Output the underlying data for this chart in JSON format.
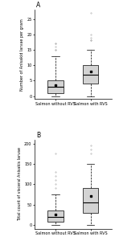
{
  "panel_A": {
    "title": "A",
    "ylabel": "Number of Anisakid larvae per gram",
    "ylim": [
      -1,
      28
    ],
    "yticks": [
      0,
      5,
      10,
      15,
      20,
      25
    ],
    "groups": [
      "Salmon without RVS",
      "Salmon with RVS"
    ],
    "box_stats": [
      {
        "med": 3,
        "q1": 1,
        "q3": 5,
        "whislo": 0,
        "whishi": 13,
        "mean": 3.5,
        "fliers": [
          15,
          15,
          16,
          17,
          17
        ]
      },
      {
        "med": 7,
        "q1": 4,
        "q3": 10,
        "whislo": 0,
        "whishi": 15,
        "mean": 8,
        "fliers": [
          18,
          18,
          19,
          20,
          27
        ]
      }
    ]
  },
  "panel_B": {
    "title": "B",
    "ylabel": "Total count of visceral Anisakis larvae",
    "ylim": [
      -10,
      210
    ],
    "yticks": [
      0,
      50,
      100,
      150,
      200
    ],
    "groups": [
      "Salmon without RVS",
      "Salmon with RVS"
    ],
    "box_stats": [
      {
        "med": 20,
        "q1": 8,
        "q3": 35,
        "whislo": 0,
        "whishi": 75,
        "mean": 25,
        "fliers": [
          90,
          100,
          110,
          120,
          130,
          175
        ]
      },
      {
        "med": 55,
        "q1": 30,
        "q3": 90,
        "whislo": 0,
        "whishi": 150,
        "mean": 70,
        "fliers": [
          175,
          185,
          195
        ]
      }
    ]
  },
  "box_color": "#d3d3d3",
  "box_edgecolor": "#000000",
  "flier_color": "#aaaaaa",
  "mean_color": "#000000",
  "background_color": "#ffffff",
  "fontsize_ylabel": 3.5,
  "fontsize_tick": 3.5,
  "fontsize_title": 5.5,
  "fontsize_xticklabel": 3.5
}
